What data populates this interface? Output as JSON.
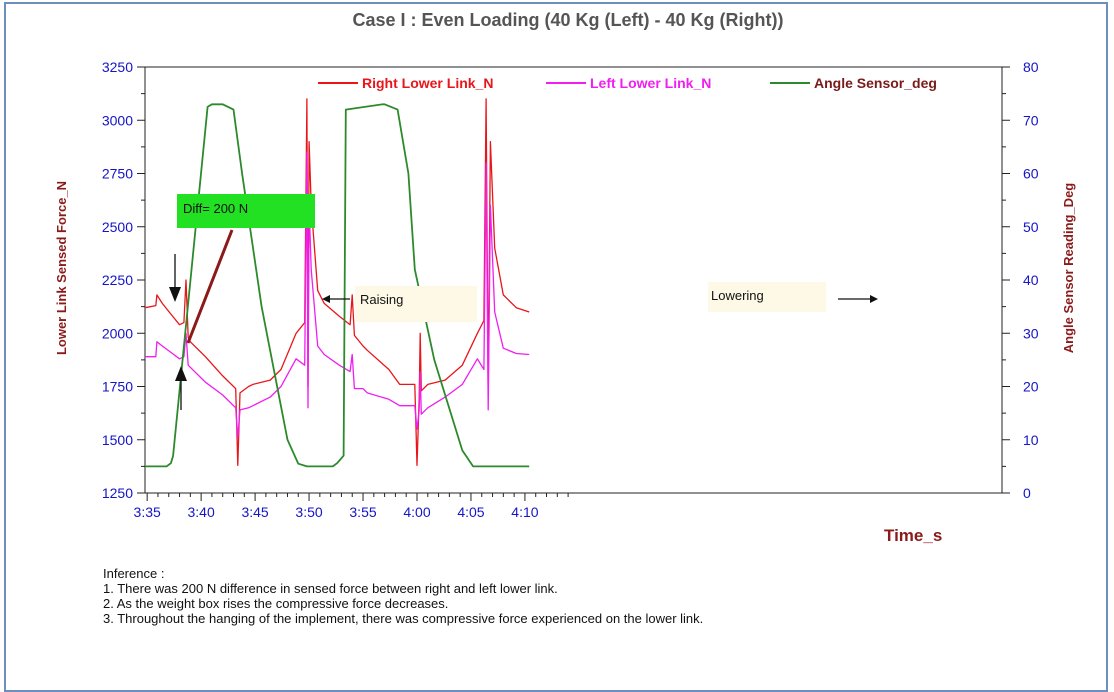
{
  "chart_data": {
    "type": "line",
    "title": "Case I : Even Loading (40 Kg (Left) - 40 Kg (Right))",
    "xlabel": "Time_s",
    "ylabel_left": "Lower Link Sensed Force_N",
    "ylabel_right": "Angle Sensor Reading_Deg",
    "xlim": [
      214,
      611
    ],
    "x_ticks": [
      {
        "v": 215,
        "label": "3:35"
      },
      {
        "v": 240,
        "label": "3:40"
      },
      {
        "v": 265,
        "label": "3:45"
      },
      {
        "v": 290,
        "label": "3:50"
      },
      {
        "v": 315,
        "label": "3:55"
      },
      {
        "v": 340,
        "label": "4:00"
      },
      {
        "v": 365,
        "label": "4:05"
      },
      {
        "v": 390,
        "label": "4:10"
      }
    ],
    "ylim_left": [
      1250,
      3250
    ],
    "y_ticks_left": [
      "1250",
      "1500",
      "1750",
      "2000",
      "2250",
      "2500",
      "2750",
      "3000",
      "3250"
    ],
    "ylim_right": [
      0,
      80
    ],
    "y_ticks_right": [
      "0",
      "10",
      "20",
      "30",
      "40",
      "50",
      "60",
      "70",
      "80"
    ],
    "legend_position": "top",
    "grid": false,
    "series": [
      {
        "name": "Right Lower Link_N",
        "axis": "left",
        "color": "#e8161b",
        "x": [
          214,
          219,
          219.5,
          222,
          226,
          230,
          232,
          233,
          234,
          235,
          238,
          242,
          250,
          256,
          257,
          258,
          262,
          264,
          272,
          277,
          284,
          288,
          289,
          289.5,
          290,
          291,
          294,
          297,
          304,
          309,
          310,
          311,
          315,
          317,
          327,
          332,
          339,
          340,
          341,
          341.5,
          342,
          345,
          353,
          361,
          368,
          371,
          372,
          373,
          374,
          376,
          380,
          386,
          392
        ],
        "y": [
          2120,
          2130,
          2180,
          2140,
          2090,
          2040,
          2050,
          2250,
          1980,
          1960,
          1930,
          1890,
          1800,
          1740,
          1380,
          1720,
          1750,
          1760,
          1780,
          1830,
          2000,
          2050,
          3100,
          1750,
          2900,
          2600,
          2200,
          2140,
          2080,
          2040,
          2180,
          1990,
          1940,
          1920,
          1830,
          1760,
          1760,
          1380,
          1700,
          2000,
          1730,
          1760,
          1780,
          1850,
          2000,
          2060,
          3100,
          1720,
          2900,
          2400,
          2180,
          2120,
          2100
        ]
      },
      {
        "name": "Left Lower Link_N",
        "axis": "left",
        "color": "#f01ef0",
        "x": [
          214,
          219,
          219.5,
          222,
          226,
          230,
          232,
          233,
          234,
          235,
          238,
          242,
          250,
          256,
          257,
          258,
          262,
          264,
          272,
          277,
          284,
          288,
          289,
          289.5,
          290,
          291,
          294,
          297,
          304,
          309,
          310,
          311,
          315,
          317,
          327,
          332,
          339,
          340,
          341,
          341.5,
          342,
          345,
          353,
          361,
          368,
          371,
          372,
          373,
          374,
          376,
          380,
          386,
          392
        ],
        "y": [
          1890,
          1890,
          1960,
          1940,
          1910,
          1880,
          1890,
          2000,
          1850,
          1840,
          1810,
          1770,
          1710,
          1650,
          1510,
          1640,
          1650,
          1660,
          1700,
          1750,
          1880,
          1850,
          2850,
          1650,
          2600,
          2300,
          1940,
          1900,
          1850,
          1820,
          1900,
          1740,
          1740,
          1720,
          1690,
          1660,
          1660,
          1550,
          1640,
          1820,
          1620,
          1650,
          1700,
          1760,
          1880,
          1830,
          2800,
          1640,
          2600,
          2100,
          1930,
          1905,
          1900
        ]
      },
      {
        "name": "Angle Sensor_deg",
        "axis": "right",
        "color": "#2c8a2c",
        "x": [
          214,
          224,
          226,
          227,
          243,
          245,
          250,
          255,
          259,
          268,
          280,
          285,
          289,
          290,
          301,
          303,
          306,
          307,
          324,
          325,
          331,
          336,
          339,
          348,
          361,
          366,
          370,
          371,
          381,
          383,
          386,
          392
        ],
        "y": [
          5,
          5,
          5.6,
          7,
          72.5,
          73,
          73,
          72,
          60,
          35,
          10,
          5.5,
          5,
          5,
          5,
          5.6,
          7,
          72,
          73,
          73,
          72,
          60,
          42,
          25,
          8,
          5,
          5,
          5,
          5,
          5,
          5,
          5
        ]
      }
    ],
    "annotations": {
      "diff": "Diff= 200 N",
      "raising": "Raising",
      "lowering": "Lowering"
    },
    "inference": {
      "heading": "Inference :",
      "points": [
        "1. There was 200 N difference in sensed force between right and left lower link.",
        "2. As the weight box rises the compressive force decreases.",
        "3. Throughout the hanging of the implement, there was compressive force experienced on the lower link."
      ]
    },
    "colors": {
      "axis_left": "#8b1a1a",
      "axis_right": "#1414c8",
      "tick_label": "#1414c8",
      "diff_box": "#22e022",
      "note_box": "#fdf9e6",
      "arrow_diag": "#8b1a1a"
    }
  }
}
